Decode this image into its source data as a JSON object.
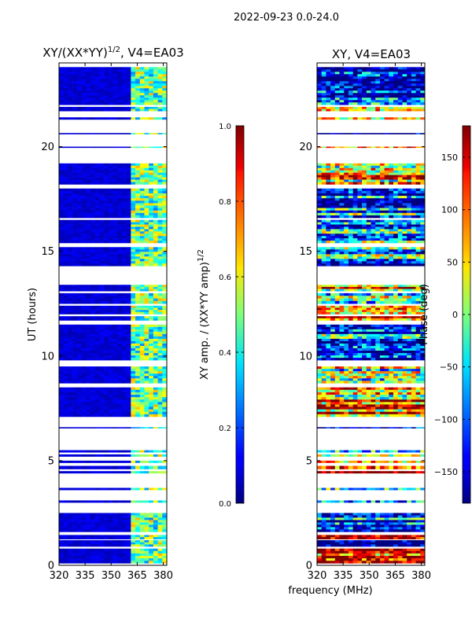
{
  "suptitle": "2022-09-23 0.0-24.0",
  "shared_xlabel": "frequency (MHz)",
  "chart_data": [
    {
      "type": "heatmap",
      "title": "XY/(XX*YY)",
      "title_sup": "1/2",
      "title_suffix": ", V4=EA03",
      "xlabel": "",
      "ylabel": "UT (hours)",
      "xlim": [
        320,
        382
      ],
      "ylim": [
        0,
        24
      ],
      "xticks": [
        320,
        335,
        350,
        365,
        380
      ],
      "yticks": [
        0,
        5,
        10,
        15,
        20
      ],
      "colorbar": {
        "colormap": "jet",
        "range": [
          0.0,
          1.0
        ],
        "ticks": [
          "0.0",
          "0.2",
          "0.4",
          "0.6",
          "0.8",
          "1.0"
        ],
        "label": "XY amp. / (XX*YY amp)",
        "label_sup": "1/2"
      },
      "data_bands": [
        [
          0.1,
          0.8
        ],
        [
          0.9,
          1.2
        ],
        [
          1.25,
          1.45
        ],
        [
          1.6,
          2.5
        ],
        [
          3.0,
          3.1
        ],
        [
          3.6,
          3.7
        ],
        [
          4.4,
          4.5
        ],
        [
          4.6,
          4.75
        ],
        [
          4.9,
          5.0
        ],
        [
          5.2,
          5.3
        ],
        [
          5.4,
          5.5
        ],
        [
          6.55,
          6.6
        ],
        [
          7.1,
          8.5
        ],
        [
          8.7,
          9.5
        ],
        [
          9.8,
          11.5
        ],
        [
          11.7,
          11.9
        ],
        [
          12.0,
          12.4
        ],
        [
          12.5,
          13.0
        ],
        [
          13.1,
          13.4
        ],
        [
          14.3,
          15.2
        ],
        [
          15.4,
          16.5
        ],
        [
          16.6,
          18.0
        ],
        [
          18.2,
          19.2
        ],
        [
          19.95,
          20.0
        ],
        [
          20.6,
          20.65
        ],
        [
          21.3,
          21.4
        ],
        [
          21.7,
          21.9
        ],
        [
          22.0,
          23.8
        ]
      ],
      "high_value_freq_band_mhz": [
        362,
        382
      ]
    },
    {
      "type": "heatmap",
      "title": "XY, V4=EA03",
      "xlabel": "",
      "ylabel": "",
      "xlim": [
        320,
        382
      ],
      "ylim": [
        0,
        24
      ],
      "xticks": [
        320,
        335,
        350,
        365,
        380
      ],
      "yticks": [
        0,
        5,
        10,
        15,
        20
      ],
      "colorbar": {
        "colormap": "jet",
        "range": [
          -180,
          180
        ],
        "ticks": [
          "−150",
          "−100",
          "−50",
          "0",
          "50",
          "100",
          "150"
        ],
        "tick_values": [
          -150,
          -100,
          -50,
          0,
          50,
          100,
          150
        ],
        "label": "Phase (deg)"
      },
      "data_bands": [
        [
          0.1,
          0.8
        ],
        [
          0.9,
          1.2
        ],
        [
          1.25,
          1.45
        ],
        [
          1.6,
          2.5
        ],
        [
          3.0,
          3.1
        ],
        [
          3.6,
          3.7
        ],
        [
          4.4,
          4.5
        ],
        [
          4.6,
          4.75
        ],
        [
          4.9,
          5.0
        ],
        [
          5.2,
          5.3
        ],
        [
          5.4,
          5.5
        ],
        [
          6.55,
          6.6
        ],
        [
          7.1,
          8.5
        ],
        [
          8.7,
          9.5
        ],
        [
          9.8,
          11.5
        ],
        [
          11.7,
          11.9
        ],
        [
          12.0,
          12.4
        ],
        [
          12.5,
          13.0
        ],
        [
          13.1,
          13.4
        ],
        [
          14.3,
          15.2
        ],
        [
          15.4,
          16.5
        ],
        [
          16.6,
          18.0
        ],
        [
          18.2,
          19.2
        ],
        [
          19.95,
          20.0
        ],
        [
          20.6,
          20.65
        ],
        [
          21.3,
          21.4
        ],
        [
          21.7,
          21.9
        ],
        [
          22.0,
          23.8
        ]
      ]
    }
  ]
}
